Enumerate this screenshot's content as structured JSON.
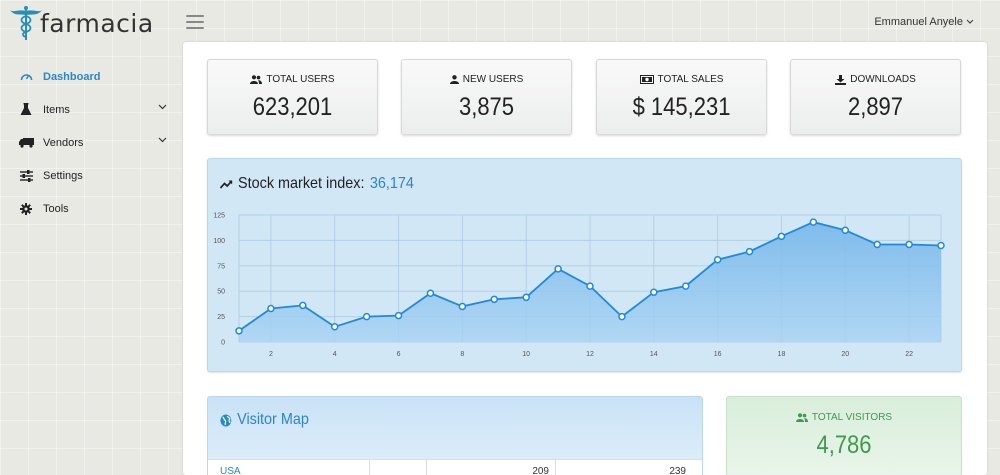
{
  "app": {
    "logo_text": "farmacia"
  },
  "header": {
    "user_name": "Emmanuel Anyele"
  },
  "sidebar": {
    "items": [
      {
        "label": "Dashboard",
        "icon": "gauge-icon",
        "active": true,
        "has_submenu": false
      },
      {
        "label": "Items",
        "icon": "flask-icon",
        "active": false,
        "has_submenu": true
      },
      {
        "label": "Vendors",
        "icon": "truck-icon",
        "active": false,
        "has_submenu": true
      },
      {
        "label": "Settings",
        "icon": "sliders-icon",
        "active": false,
        "has_submenu": false
      },
      {
        "label": "Tools",
        "icon": "gear-icon",
        "active": false,
        "has_submenu": false
      }
    ]
  },
  "stats": [
    {
      "label": "TOTAL USERS",
      "value": "623,201",
      "icon": "users-icon"
    },
    {
      "label": "NEW USERS",
      "value": "3,875",
      "icon": "user-icon"
    },
    {
      "label": "TOTAL SALES",
      "value": "$ 145,231",
      "icon": "money-icon"
    },
    {
      "label": "DOWNLOADS",
      "value": "2,897",
      "icon": "download-icon"
    }
  ],
  "stock_panel": {
    "title": "Stock market index:",
    "value": "36,174",
    "icon": "trend-up-icon"
  },
  "chart_data": {
    "type": "area",
    "title": "",
    "xlabel": "",
    "ylabel": "",
    "x": [
      1,
      2,
      3,
      4,
      5,
      6,
      7,
      8,
      9,
      10,
      11,
      12,
      13,
      14,
      15,
      16,
      17,
      18,
      19,
      20,
      21,
      22,
      23
    ],
    "values": [
      11,
      33,
      36,
      15,
      25,
      26,
      48,
      35,
      42,
      44,
      72,
      55,
      25,
      49,
      55,
      81,
      89,
      104,
      118,
      110,
      96,
      96,
      95
    ],
    "xlim": [
      1,
      23
    ],
    "ylim": [
      0,
      125
    ],
    "yticks": [
      0,
      25,
      50,
      75,
      100,
      125
    ],
    "xticks": [
      2,
      4,
      6,
      8,
      10,
      12,
      14,
      16,
      18,
      20,
      22
    ],
    "grid": true,
    "colors": {
      "line": "#1f8ad6",
      "fill": "#7ab9ea"
    }
  },
  "visitor_map": {
    "title": "Visitor Map",
    "icon": "globe-icon",
    "rows": [
      {
        "country": "USA",
        "col2": "",
        "col3": "209",
        "col4": "239"
      }
    ]
  },
  "visitors": {
    "label": "TOTAL VISITORS",
    "value": "4,786",
    "icon": "users-icon",
    "color": "#3e9a4f"
  }
}
